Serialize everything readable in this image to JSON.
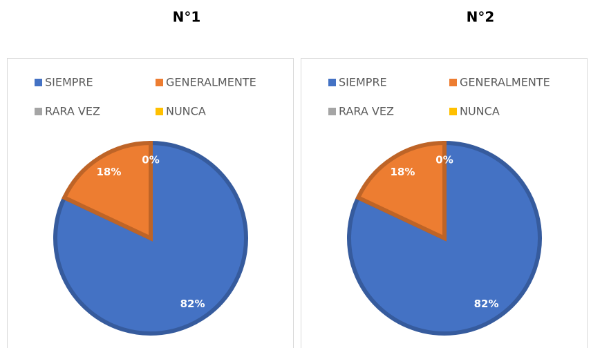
{
  "chart_data": [
    {
      "type": "pie",
      "title": "N°1",
      "categories": [
        "SIEMPRE",
        "GENERALMENTE",
        "RARA VEZ",
        "NUNCA"
      ],
      "values": [
        82,
        18,
        0,
        0
      ],
      "value_labels": [
        "82%",
        "18%",
        "0%",
        null
      ],
      "colors": [
        "#4472c4",
        "#ed7d31",
        "#a5a5a5",
        "#ffc000"
      ],
      "legend": "top"
    },
    {
      "type": "pie",
      "title": "N°2",
      "categories": [
        "SIEMPRE",
        "GENERALMENTE",
        "RARA VEZ",
        "NUNCA"
      ],
      "values": [
        82,
        18,
        0,
        0
      ],
      "value_labels": [
        "82%",
        "18%",
        "0%",
        null
      ],
      "colors": [
        "#4472c4",
        "#ed7d31",
        "#a5a5a5",
        "#ffc000"
      ],
      "legend": "top"
    }
  ]
}
